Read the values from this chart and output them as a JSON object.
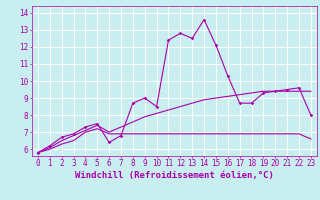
{
  "xlabel": "Windchill (Refroidissement éolien,°C)",
  "bg_color": "#c8eef0",
  "grid_color": "#ffffff",
  "line_color": "#aa00aa",
  "xlim": [
    -0.5,
    23.5
  ],
  "ylim": [
    5.6,
    14.4
  ],
  "yticks": [
    6,
    7,
    8,
    9,
    10,
    11,
    12,
    13,
    14
  ],
  "xticks": [
    0,
    1,
    2,
    3,
    4,
    5,
    6,
    7,
    8,
    9,
    10,
    11,
    12,
    13,
    14,
    15,
    16,
    17,
    18,
    19,
    20,
    21,
    22,
    23
  ],
  "line1_x": [
    0,
    1,
    2,
    3,
    4,
    5,
    6,
    7,
    8,
    9,
    10,
    11,
    12,
    13,
    14,
    15,
    16,
    17,
    18,
    19,
    20,
    21,
    22,
    23
  ],
  "line1_y": [
    5.8,
    6.2,
    6.7,
    6.9,
    7.3,
    7.5,
    6.4,
    6.8,
    8.7,
    9.0,
    8.5,
    12.4,
    12.8,
    12.5,
    13.6,
    12.1,
    10.3,
    8.7,
    8.7,
    9.3,
    9.4,
    9.5,
    9.6,
    8.0
  ],
  "line2_x": [
    0,
    1,
    2,
    3,
    4,
    5,
    6,
    7,
    8,
    9,
    10,
    11,
    12,
    13,
    14,
    15,
    16,
    17,
    18,
    19,
    20,
    21,
    22,
    23
  ],
  "line2_y": [
    5.8,
    6.1,
    6.5,
    6.8,
    7.1,
    7.4,
    7.0,
    7.3,
    7.6,
    7.9,
    8.1,
    8.3,
    8.5,
    8.7,
    8.9,
    9.0,
    9.1,
    9.2,
    9.3,
    9.4,
    9.4,
    9.4,
    9.4,
    9.4
  ],
  "line3_x": [
    0,
    1,
    2,
    3,
    4,
    5,
    6,
    7,
    8,
    9,
    10,
    11,
    12,
    13,
    14,
    15,
    16,
    17,
    18,
    19,
    20,
    21,
    22,
    23
  ],
  "line3_y": [
    5.8,
    6.0,
    6.3,
    6.5,
    7.0,
    7.2,
    6.9,
    6.9,
    6.9,
    6.9,
    6.9,
    6.9,
    6.9,
    6.9,
    6.9,
    6.9,
    6.9,
    6.9,
    6.9,
    6.9,
    6.9,
    6.9,
    6.9,
    6.6
  ],
  "tick_fontsize": 5.5,
  "xlabel_fontsize": 6.5
}
